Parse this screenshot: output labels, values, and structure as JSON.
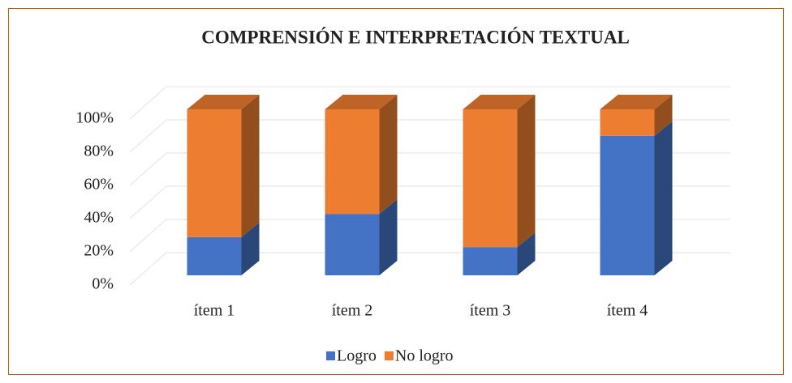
{
  "chart_data": {
    "type": "bar3d_stacked",
    "title": "COMPRENSIÓN E INTERPRETACIÓN TEXTUAL",
    "categories": [
      "ítem 1",
      "ítem 2",
      "ítem 3",
      "ítem 4"
    ],
    "series": [
      {
        "name": "Logro",
        "color": "#4472c4",
        "values": [
          23,
          37,
          17,
          84
        ]
      },
      {
        "name": "No logro",
        "color": "#ed7d31",
        "values": [
          77,
          63,
          83,
          16
        ]
      }
    ],
    "ylim": [
      0,
      100
    ],
    "yticks": [
      {
        "value": 0,
        "label": "0%"
      },
      {
        "value": 20,
        "label": "20%"
      },
      {
        "value": 40,
        "label": "40%"
      },
      {
        "value": 60,
        "label": "60%"
      },
      {
        "value": 80,
        "label": "80%"
      },
      {
        "value": 100,
        "label": "100%"
      }
    ],
    "grid": true,
    "legend": "bottom"
  }
}
